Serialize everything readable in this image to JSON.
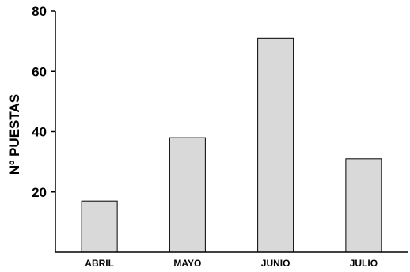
{
  "chart_data": {
    "type": "bar",
    "categories": [
      "ABRIL",
      "MAYO",
      "JUNIO",
      "JULIO"
    ],
    "values": [
      17,
      38,
      71,
      31
    ],
    "title": "",
    "xlabel": "",
    "ylabel": "Nº PUESTAS",
    "ylim": [
      0,
      80
    ],
    "yticks": [
      20,
      40,
      60,
      80
    ],
    "grid": false,
    "bar_color": "#d9d9d9",
    "bar_edge_color": "#000000"
  }
}
